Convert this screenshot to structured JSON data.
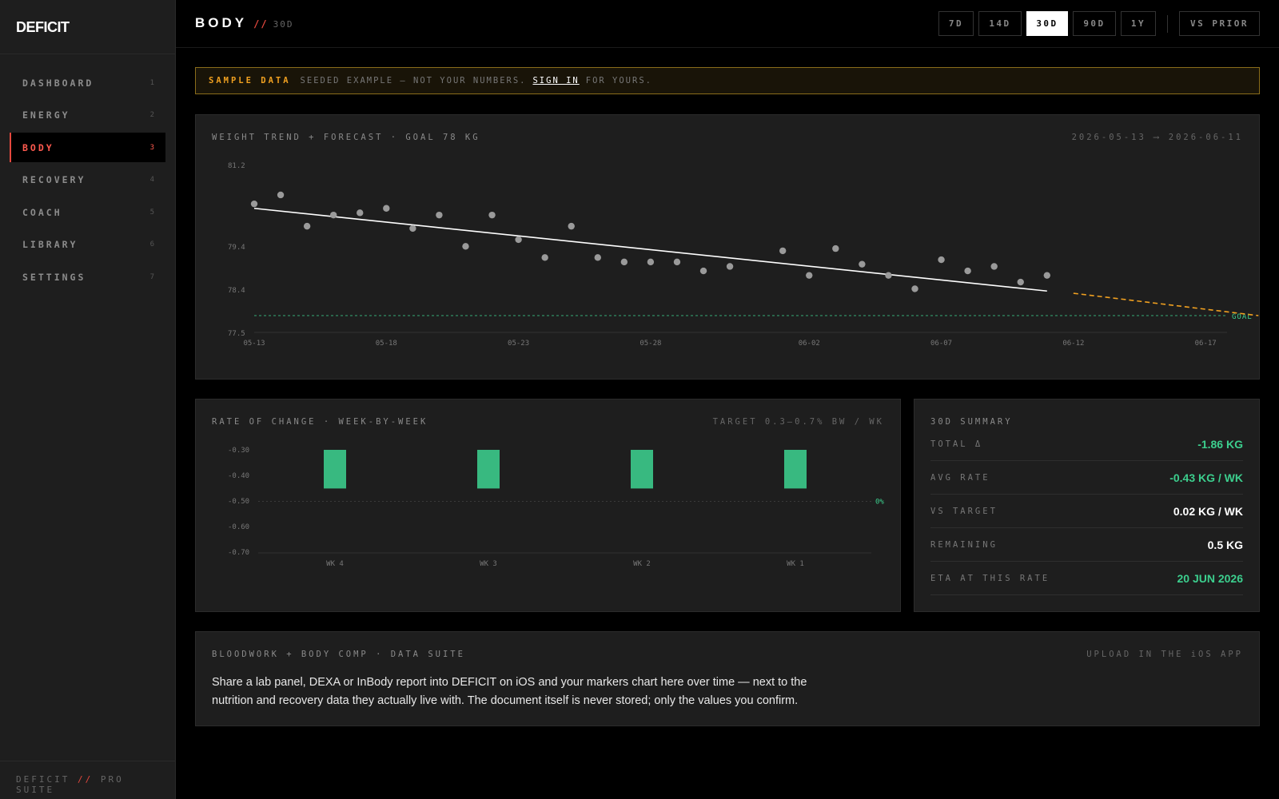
{
  "app": {
    "logo": "DEFICIT"
  },
  "sidebar": {
    "items": [
      {
        "label": "DASHBOARD",
        "num": "1"
      },
      {
        "label": "ENERGY",
        "num": "2"
      },
      {
        "label": "BODY",
        "num": "3",
        "active": true
      },
      {
        "label": "RECOVERY",
        "num": "4"
      },
      {
        "label": "COACH",
        "num": "5"
      },
      {
        "label": "LIBRARY",
        "num": "6"
      },
      {
        "label": "SETTINGS",
        "num": "7"
      }
    ],
    "footer": {
      "brand": "DEFICIT",
      "slash": "//",
      "suite": "PRO SUITE"
    }
  },
  "header": {
    "title": "BODY",
    "slash": "//",
    "range": "30D",
    "ranges": [
      "7D",
      "14D",
      "30D",
      "90D",
      "1Y"
    ],
    "active_range": "30D",
    "compare": "VS PRIOR"
  },
  "banner": {
    "tag": "SAMPLE DATA",
    "text_before": "SEEDED EXAMPLE — NOT YOUR NUMBERS.",
    "link": "SIGN IN",
    "text_after": "FOR YOURS."
  },
  "trend_card": {
    "title": "WEIGHT TREND + FORECAST · GOAL 78 KG",
    "date_range": "2026-05-13 ⟶ 2026-06-11"
  },
  "rate_card": {
    "title": "RATE OF CHANGE · WEEK-BY-WEEK",
    "target": "TARGET 0.3–0.7% BW / WK"
  },
  "summary": {
    "title": "30D SUMMARY",
    "rows": [
      {
        "label": "TOTAL Δ",
        "value": "-1.86 KG",
        "color": "green"
      },
      {
        "label": "AVG RATE",
        "value": "-0.43 KG / WK",
        "color": "green"
      },
      {
        "label": "VS TARGET",
        "value": "0.02 KG / WK",
        "color": "white"
      },
      {
        "label": "REMAINING",
        "value": "0.5 KG",
        "color": "white"
      },
      {
        "label": "ETA AT THIS RATE",
        "value": "20 JUN 2026",
        "color": "green"
      }
    ]
  },
  "bloodwork": {
    "title": "BLOODWORK + BODY COMP · DATA SUITE",
    "action": "UPLOAD IN THE iOS APP",
    "text": "Share a lab panel, DEXA or InBody report into DEFICIT on iOS and your markers chart here over time — next to the nutrition and recovery data they actually live with. The document itself is never stored; only the values you confirm."
  },
  "colors": {
    "accent": "#e5483e",
    "green": "#3ccf8e",
    "forecast": "#f0a020",
    "warning": "#8a6d1a"
  },
  "chart_data": [
    {
      "type": "scatter",
      "x_tick_labels": [
        "05-13",
        "05-18",
        "05-23",
        "05-28",
        "06-02",
        "06-07",
        "06-12",
        "06-17"
      ],
      "y_tick_labels": [
        "81.2",
        "79.4",
        "78.4",
        "77.5"
      ],
      "ylim": [
        77.5,
        81.2
      ],
      "points": [
        {
          "x": "05-13",
          "y": 80.5
        },
        {
          "x": "05-14",
          "y": 80.7
        },
        {
          "x": "05-15",
          "y": 80.0
        },
        {
          "x": "05-16",
          "y": 80.25
        },
        {
          "x": "05-17",
          "y": 80.3
        },
        {
          "x": "05-18",
          "y": 80.4
        },
        {
          "x": "05-19",
          "y": 79.95
        },
        {
          "x": "05-20",
          "y": 80.25
        },
        {
          "x": "05-21",
          "y": 79.55
        },
        {
          "x": "05-22",
          "y": 80.25
        },
        {
          "x": "05-23",
          "y": 79.7
        },
        {
          "x": "05-24",
          "y": 79.3
        },
        {
          "x": "05-25",
          "y": 80.0
        },
        {
          "x": "05-26",
          "y": 79.3
        },
        {
          "x": "05-27",
          "y": 79.2
        },
        {
          "x": "05-28",
          "y": 79.2
        },
        {
          "x": "05-29",
          "y": 79.2
        },
        {
          "x": "05-30",
          "y": 79.0
        },
        {
          "x": "05-31",
          "y": 79.1
        },
        {
          "x": "06-01",
          "y": 79.45
        },
        {
          "x": "06-02",
          "y": 78.9
        },
        {
          "x": "06-03",
          "y": 79.5
        },
        {
          "x": "06-04",
          "y": 79.15
        },
        {
          "x": "06-05",
          "y": 78.9
        },
        {
          "x": "06-06",
          "y": 78.6
        },
        {
          "x": "06-07",
          "y": 79.25
        },
        {
          "x": "06-08",
          "y": 79.0
        },
        {
          "x": "06-09",
          "y": 79.1
        },
        {
          "x": "06-10",
          "y": 78.75
        },
        {
          "x": "06-11",
          "y": 78.9
        }
      ],
      "trend": [
        {
          "x": "05-13",
          "y": 80.4
        },
        {
          "x": "06-11",
          "y": 78.55
        }
      ],
      "forecast": [
        {
          "x": "06-12",
          "y": 78.5
        },
        {
          "x": "06-19",
          "y": 78.0
        }
      ],
      "goal": {
        "y": 78.0,
        "label": "GOAL"
      }
    },
    {
      "type": "bar",
      "categories": [
        "WK 4",
        "WK 3",
        "WK 2",
        "WK 1"
      ],
      "values": [
        -0.45,
        -0.45,
        -0.45,
        -0.45
      ],
      "y_tick_labels": [
        "-0.30",
        "-0.40",
        "-0.50",
        "-0.60",
        "-0.70"
      ],
      "ylim": [
        -0.7,
        -0.3
      ],
      "reference": {
        "y": -0.5,
        "label": "0%"
      }
    }
  ]
}
